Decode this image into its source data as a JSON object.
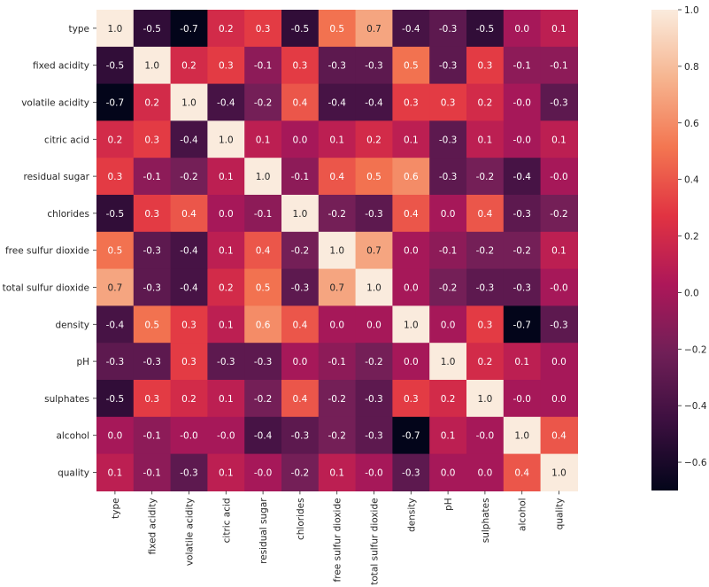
{
  "chart_data": {
    "type": "heatmap",
    "title": "",
    "xlabel": "",
    "ylabel": "",
    "x_categories": [
      "type",
      "fixed acidity",
      "volatile acidity",
      "citric acid",
      "residual sugar",
      "chlorides",
      "free sulfur dioxide",
      "total sulfur dioxide",
      "density",
      "pH",
      "sulphates",
      "alcohol",
      "quality"
    ],
    "y_categories": [
      "type",
      "fixed acidity",
      "volatile acidity",
      "citric acid",
      "residual sugar",
      "chlorides",
      "free sulfur dioxide",
      "total sulfur dioxide",
      "density",
      "pH",
      "sulphates",
      "alcohol",
      "quality"
    ],
    "values": [
      [
        1.0,
        -0.5,
        -0.7,
        0.2,
        0.3,
        -0.5,
        0.5,
        0.7,
        -0.4,
        -0.3,
        -0.5,
        0.0,
        0.1
      ],
      [
        -0.5,
        1.0,
        0.2,
        0.3,
        -0.1,
        0.3,
        -0.3,
        -0.3,
        0.5,
        -0.3,
        0.3,
        -0.1,
        -0.1
      ],
      [
        -0.7,
        0.2,
        1.0,
        -0.4,
        -0.2,
        0.4,
        -0.4,
        -0.4,
        0.3,
        0.3,
        0.2,
        -0.0,
        -0.3
      ],
      [
        0.2,
        0.3,
        -0.4,
        1.0,
        0.1,
        0.0,
        0.1,
        0.2,
        0.1,
        -0.3,
        0.1,
        -0.0,
        0.1
      ],
      [
        0.3,
        -0.1,
        -0.2,
        0.1,
        1.0,
        -0.1,
        0.4,
        0.5,
        0.6,
        -0.3,
        -0.2,
        -0.4,
        -0.0
      ],
      [
        -0.5,
        0.3,
        0.4,
        0.0,
        -0.1,
        1.0,
        -0.2,
        -0.3,
        0.4,
        0.0,
        0.4,
        -0.3,
        -0.2
      ],
      [
        0.5,
        -0.3,
        -0.4,
        0.1,
        0.4,
        -0.2,
        1.0,
        0.7,
        0.0,
        -0.1,
        -0.2,
        -0.2,
        0.1
      ],
      [
        0.7,
        -0.3,
        -0.4,
        0.2,
        0.5,
        -0.3,
        0.7,
        1.0,
        0.0,
        -0.2,
        -0.3,
        -0.3,
        -0.0
      ],
      [
        -0.4,
        0.5,
        0.3,
        0.1,
        0.6,
        0.4,
        0.0,
        0.0,
        1.0,
        0.0,
        0.3,
        -0.7,
        -0.3
      ],
      [
        -0.3,
        -0.3,
        0.3,
        -0.3,
        -0.3,
        0.0,
        -0.1,
        -0.2,
        0.0,
        1.0,
        0.2,
        0.1,
        0.0
      ],
      [
        -0.5,
        0.3,
        0.2,
        0.1,
        -0.2,
        0.4,
        -0.2,
        -0.3,
        0.3,
        0.2,
        1.0,
        -0.0,
        0.0
      ],
      [
        0.0,
        -0.1,
        -0.0,
        -0.0,
        -0.4,
        -0.3,
        -0.2,
        -0.3,
        -0.7,
        0.1,
        -0.0,
        1.0,
        0.4
      ],
      [
        0.1,
        -0.1,
        -0.3,
        0.1,
        -0.0,
        -0.2,
        0.1,
        -0.0,
        -0.3,
        0.0,
        0.0,
        0.4,
        1.0
      ]
    ],
    "annotations": [
      [
        "1.0",
        "-0.5",
        "-0.7",
        "0.2",
        "0.3",
        "-0.5",
        "0.5",
        "0.7",
        "-0.4",
        "-0.3",
        "-0.5",
        "0.0",
        "0.1"
      ],
      [
        "-0.5",
        "1.0",
        "0.2",
        "0.3",
        "-0.1",
        "0.3",
        "-0.3",
        "-0.3",
        "0.5",
        "-0.3",
        "0.3",
        "-0.1",
        "-0.1"
      ],
      [
        "-0.7",
        "0.2",
        "1.0",
        "-0.4",
        "-0.2",
        "0.4",
        "-0.4",
        "-0.4",
        "0.3",
        "0.3",
        "0.2",
        "-0.0",
        "-0.3"
      ],
      [
        "0.2",
        "0.3",
        "-0.4",
        "1.0",
        "0.1",
        "0.0",
        "0.1",
        "0.2",
        "0.1",
        "-0.3",
        "0.1",
        "-0.0",
        "0.1"
      ],
      [
        "0.3",
        "-0.1",
        "-0.2",
        "0.1",
        "1.0",
        "-0.1",
        "0.4",
        "0.5",
        "0.6",
        "-0.3",
        "-0.2",
        "-0.4",
        "-0.0"
      ],
      [
        "-0.5",
        "0.3",
        "0.4",
        "0.0",
        "-0.1",
        "1.0",
        "-0.2",
        "-0.3",
        "0.4",
        "0.0",
        "0.4",
        "-0.3",
        "-0.2"
      ],
      [
        "0.5",
        "-0.3",
        "-0.4",
        "0.1",
        "0.4",
        "-0.2",
        "1.0",
        "0.7",
        "0.0",
        "-0.1",
        "-0.2",
        "-0.2",
        "0.1"
      ],
      [
        "0.7",
        "-0.3",
        "-0.4",
        "0.2",
        "0.5",
        "-0.3",
        "0.7",
        "1.0",
        "0.0",
        "-0.2",
        "-0.3",
        "-0.3",
        "-0.0"
      ],
      [
        "-0.4",
        "0.5",
        "0.3",
        "0.1",
        "0.6",
        "0.4",
        "0.0",
        "0.0",
        "1.0",
        "0.0",
        "0.3",
        "-0.7",
        "-0.3"
      ],
      [
        "-0.3",
        "-0.3",
        "0.3",
        "-0.3",
        "-0.3",
        "0.0",
        "-0.1",
        "-0.2",
        "0.0",
        "1.0",
        "0.2",
        "0.1",
        "0.0"
      ],
      [
        "-0.5",
        "0.3",
        "0.2",
        "0.1",
        "-0.2",
        "0.4",
        "-0.2",
        "-0.3",
        "0.3",
        "0.2",
        "1.0",
        "-0.0",
        "0.0"
      ],
      [
        "0.0",
        "-0.1",
        "-0.0",
        "-0.0",
        "-0.4",
        "-0.3",
        "-0.2",
        "-0.3",
        "-0.7",
        "0.1",
        "-0.0",
        "1.0",
        "0.4"
      ],
      [
        "0.1",
        "-0.1",
        "-0.3",
        "0.1",
        "-0.0",
        "-0.2",
        "0.1",
        "-0.0",
        "-0.3",
        "0.0",
        "0.0",
        "0.4",
        "1.0"
      ]
    ],
    "colorbar": {
      "vmin": -0.7,
      "vmax": 1.0,
      "ticks": [
        -0.6,
        -0.4,
        -0.2,
        0.0,
        0.2,
        0.4,
        0.6,
        0.8,
        1.0
      ],
      "tick_labels": [
        "−0.6",
        "−0.4",
        "−0.2",
        "0.0",
        "0.2",
        "0.4",
        "0.6",
        "0.8",
        "1.0"
      ]
    },
    "colormap_stops": [
      "#03051a",
      "#3b0f3f",
      "#701f57",
      "#ad1759",
      "#e13342",
      "#f37651",
      "#f6b48f",
      "#faebdd"
    ],
    "light_text_color": "#ffffff",
    "dark_text_color": "#262626",
    "grid": false,
    "legend": "none"
  }
}
